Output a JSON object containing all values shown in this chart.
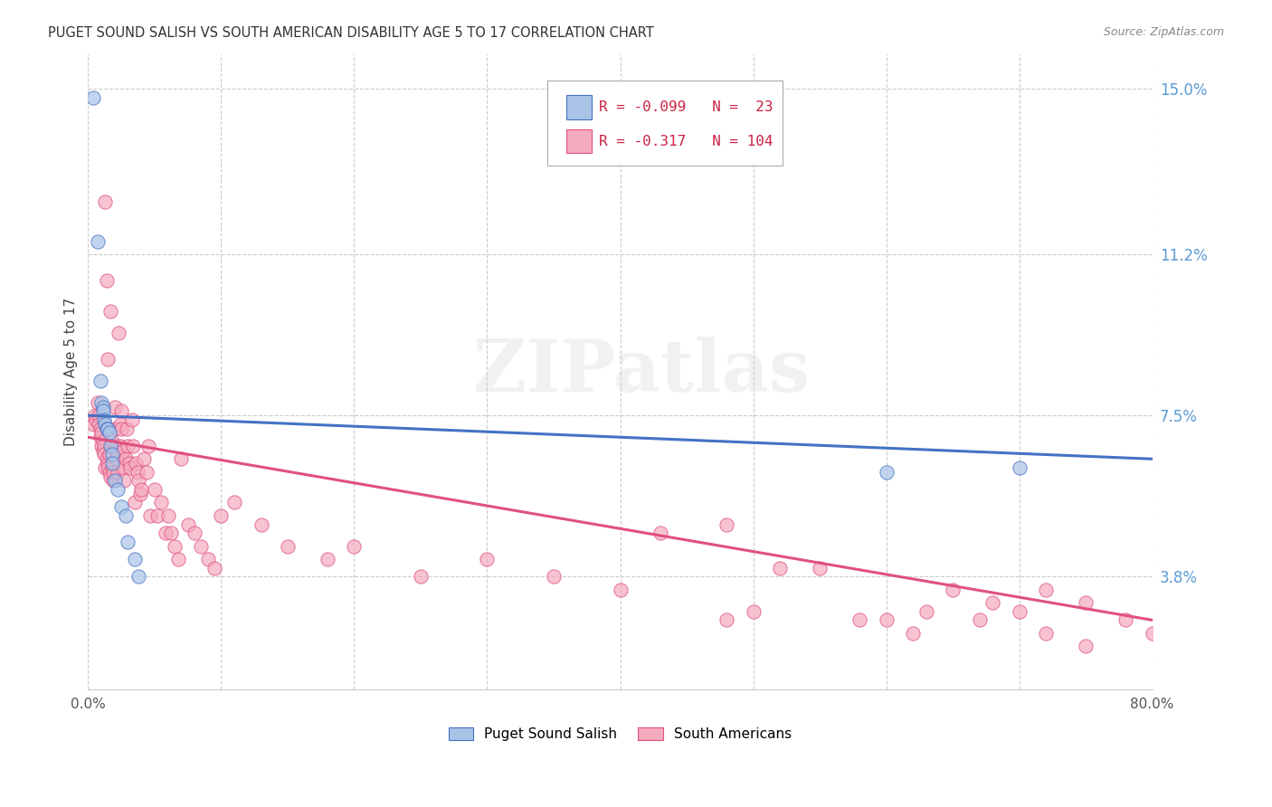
{
  "title": "PUGET SOUND SALISH VS SOUTH AMERICAN DISABILITY AGE 5 TO 17 CORRELATION CHART",
  "source": "Source: ZipAtlas.com",
  "ylabel": "Disability Age 5 to 17",
  "xlim": [
    0.0,
    0.8
  ],
  "ylim": [
    0.012,
    0.158
  ],
  "yticks": [
    0.038,
    0.075,
    0.112,
    0.15
  ],
  "ytick_labels": [
    "3.8%",
    "7.5%",
    "11.2%",
    "15.0%"
  ],
  "xticks": [
    0.0,
    0.1,
    0.2,
    0.3,
    0.4,
    0.5,
    0.6,
    0.7,
    0.8
  ],
  "xtick_labels": [
    "0.0%",
    "",
    "",
    "",
    "",
    "",
    "",
    "",
    "80.0%"
  ],
  "group1_color": "#aac4e8",
  "group2_color": "#f5aabe",
  "line1_color": "#4472c4",
  "line2_color": "#e05080",
  "legend_R1": "-0.099",
  "legend_N1": "23",
  "legend_R2": "-0.317",
  "legend_N2": "104",
  "legend_label1": "Puget Sound Salish",
  "legend_label2": "South Americans",
  "watermark": "ZIPatlas",
  "group1_x": [
    0.004,
    0.007,
    0.009,
    0.01,
    0.011,
    0.011,
    0.012,
    0.013,
    0.014,
    0.015,
    0.016,
    0.017,
    0.018,
    0.018,
    0.02,
    0.022,
    0.025,
    0.028,
    0.03,
    0.035,
    0.038,
    0.6,
    0.7
  ],
  "group1_y": [
    0.148,
    0.115,
    0.083,
    0.078,
    0.077,
    0.076,
    0.074,
    0.073,
    0.072,
    0.072,
    0.071,
    0.068,
    0.066,
    0.064,
    0.06,
    0.058,
    0.054,
    0.052,
    0.046,
    0.042,
    0.038,
    0.062,
    0.063
  ],
  "group2_x": [
    0.004,
    0.005,
    0.006,
    0.007,
    0.008,
    0.008,
    0.009,
    0.009,
    0.01,
    0.01,
    0.011,
    0.011,
    0.012,
    0.012,
    0.013,
    0.013,
    0.014,
    0.014,
    0.015,
    0.015,
    0.015,
    0.016,
    0.016,
    0.017,
    0.017,
    0.018,
    0.018,
    0.019,
    0.019,
    0.02,
    0.02,
    0.021,
    0.021,
    0.022,
    0.022,
    0.023,
    0.024,
    0.024,
    0.025,
    0.025,
    0.026,
    0.026,
    0.027,
    0.028,
    0.029,
    0.03,
    0.031,
    0.032,
    0.033,
    0.034,
    0.035,
    0.036,
    0.037,
    0.038,
    0.039,
    0.04,
    0.042,
    0.044,
    0.045,
    0.047,
    0.05,
    0.052,
    0.055,
    0.058,
    0.06,
    0.062,
    0.065,
    0.068,
    0.07,
    0.075,
    0.08,
    0.085,
    0.09,
    0.095,
    0.1,
    0.11,
    0.13,
    0.15,
    0.18,
    0.2,
    0.25,
    0.3,
    0.35,
    0.4,
    0.43,
    0.48,
    0.5,
    0.55,
    0.6,
    0.62,
    0.65,
    0.68,
    0.7,
    0.72,
    0.75,
    0.78,
    0.8,
    0.48,
    0.52,
    0.58,
    0.63,
    0.67,
    0.72,
    0.75
  ],
  "group2_y": [
    0.073,
    0.075,
    0.074,
    0.078,
    0.075,
    0.073,
    0.072,
    0.07,
    0.071,
    0.068,
    0.069,
    0.067,
    0.068,
    0.066,
    0.124,
    0.063,
    0.106,
    0.065,
    0.064,
    0.088,
    0.063,
    0.066,
    0.062,
    0.099,
    0.061,
    0.063,
    0.069,
    0.06,
    0.062,
    0.077,
    0.072,
    0.068,
    0.065,
    0.062,
    0.066,
    0.094,
    0.068,
    0.073,
    0.076,
    0.072,
    0.067,
    0.063,
    0.06,
    0.065,
    0.072,
    0.068,
    0.064,
    0.063,
    0.074,
    0.068,
    0.055,
    0.064,
    0.062,
    0.06,
    0.057,
    0.058,
    0.065,
    0.062,
    0.068,
    0.052,
    0.058,
    0.052,
    0.055,
    0.048,
    0.052,
    0.048,
    0.045,
    0.042,
    0.065,
    0.05,
    0.048,
    0.045,
    0.042,
    0.04,
    0.052,
    0.055,
    0.05,
    0.045,
    0.042,
    0.045,
    0.038,
    0.042,
    0.038,
    0.035,
    0.048,
    0.028,
    0.03,
    0.04,
    0.028,
    0.025,
    0.035,
    0.032,
    0.03,
    0.035,
    0.032,
    0.028,
    0.025,
    0.05,
    0.04,
    0.028,
    0.03,
    0.028,
    0.025,
    0.022
  ]
}
